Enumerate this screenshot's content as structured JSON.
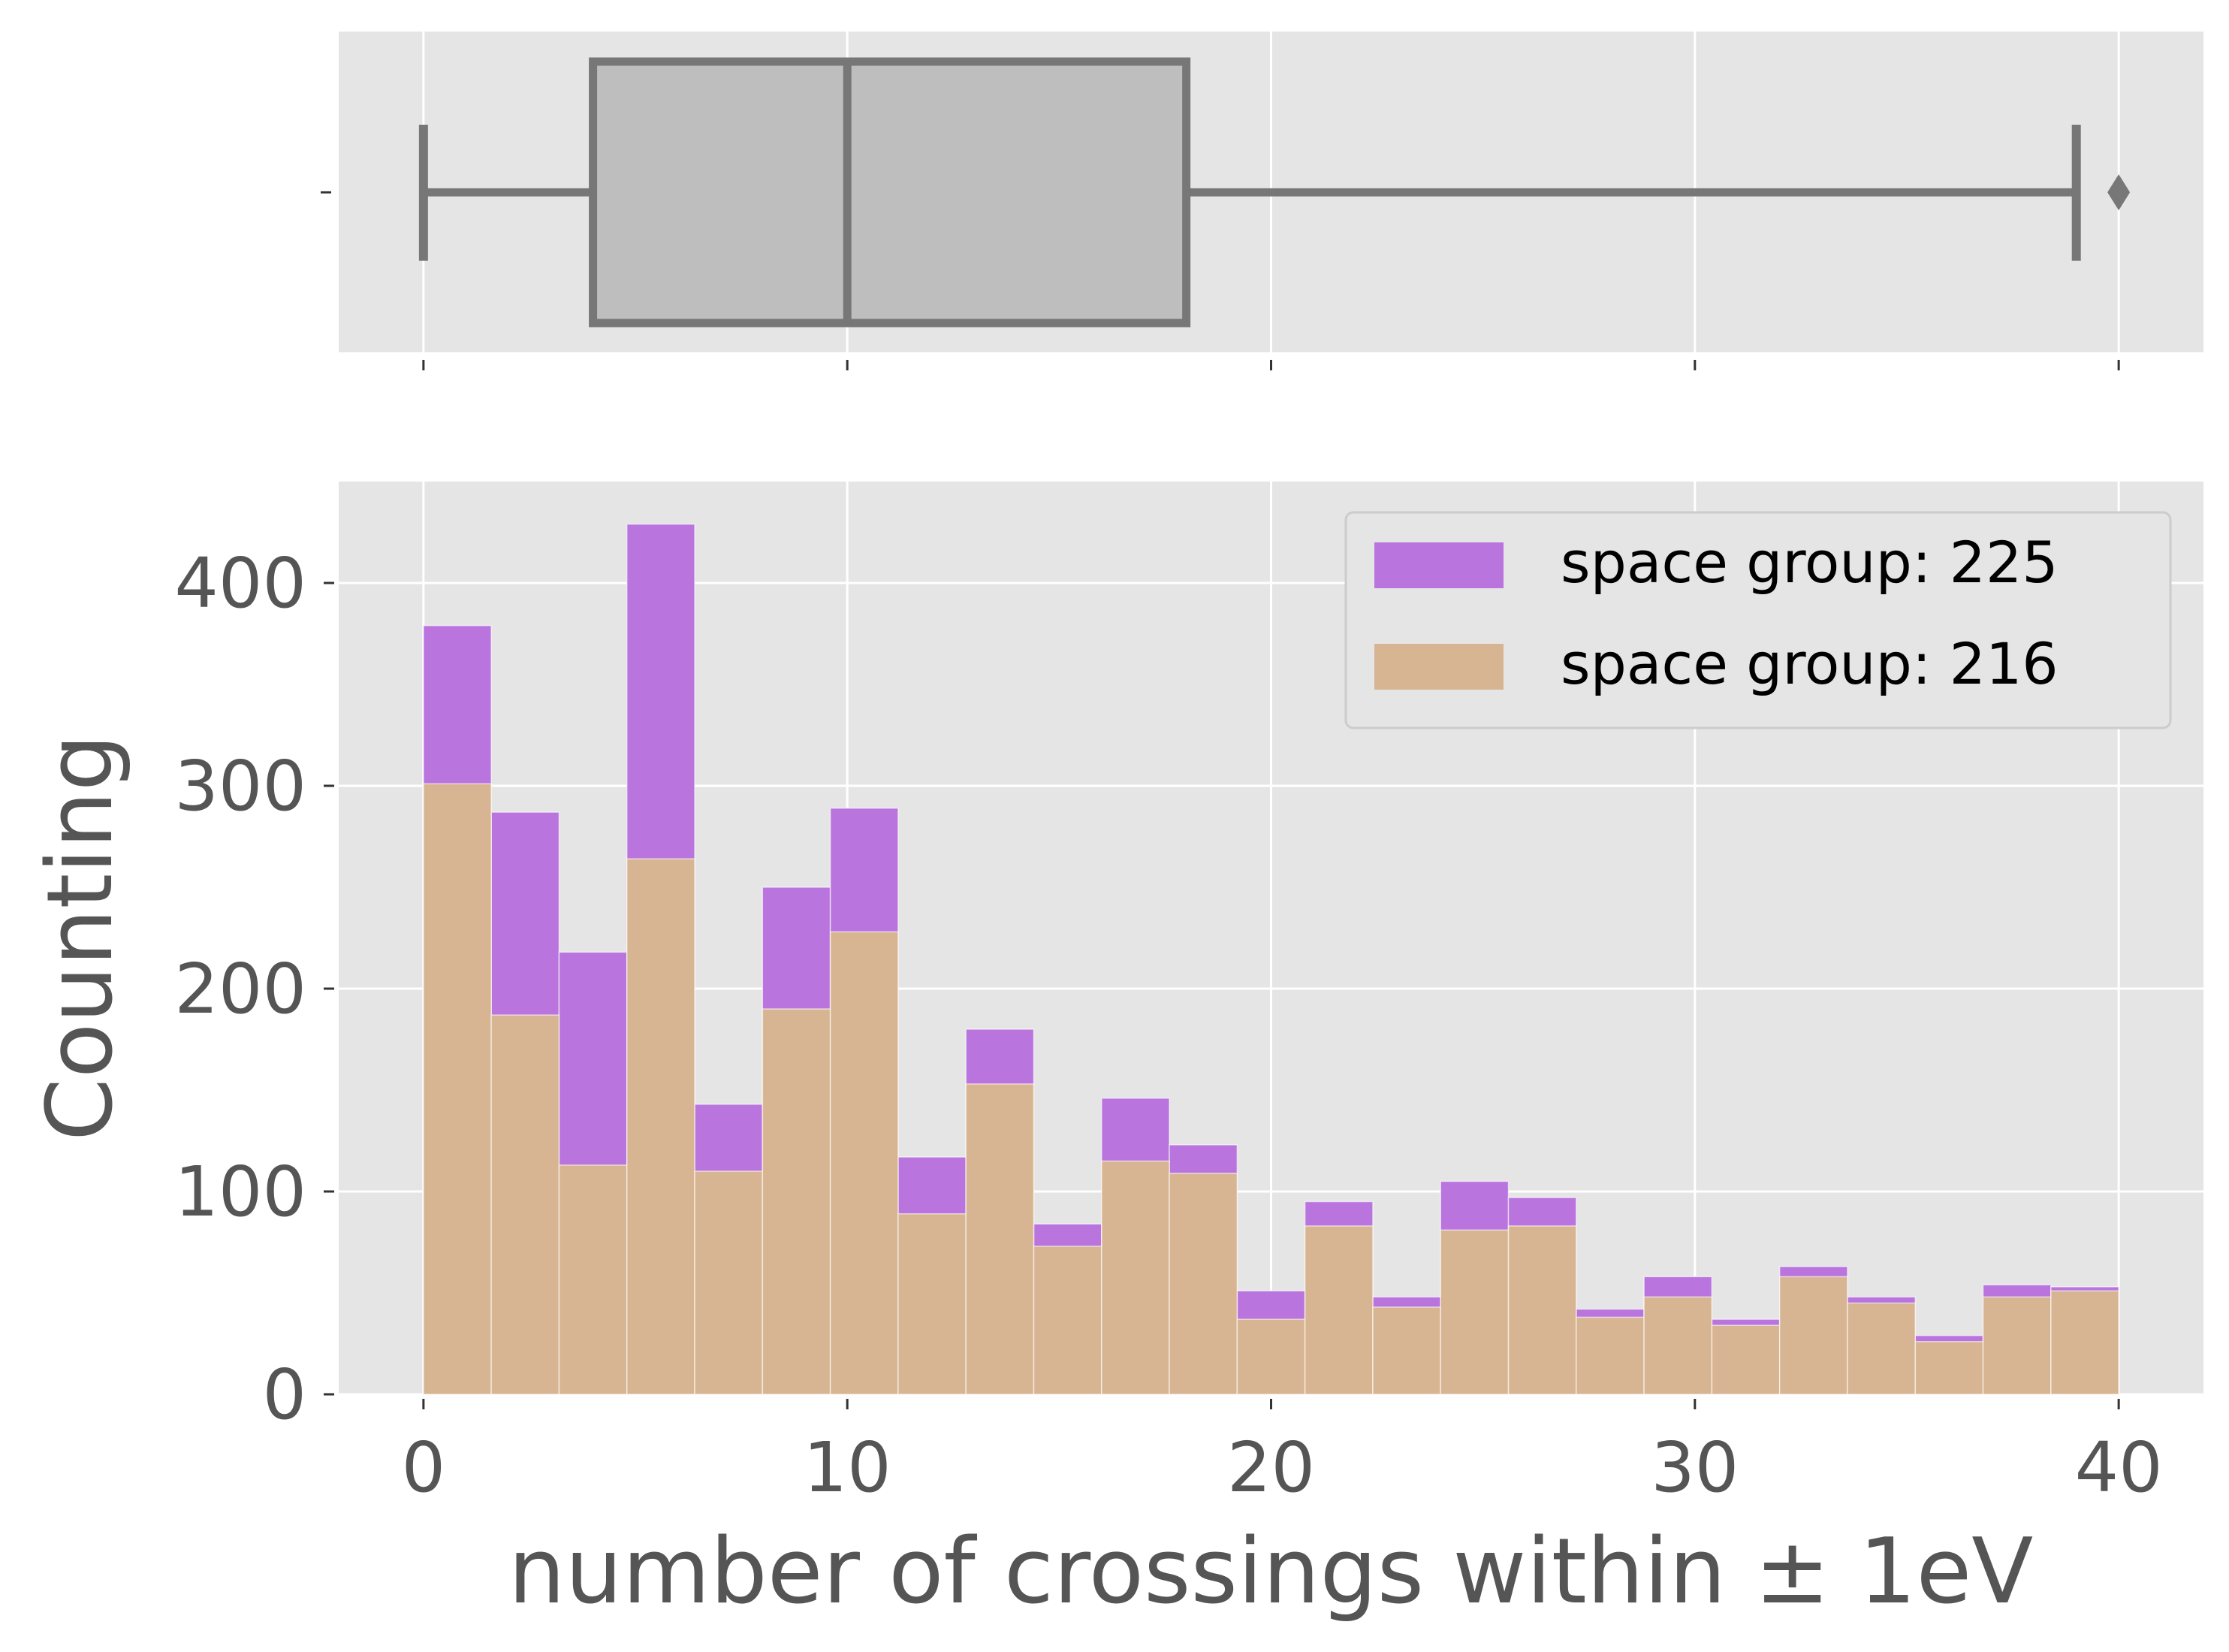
{
  "chart_data": {
    "type": "bar",
    "subtype": "stacked-step-histogram-with-boxplot",
    "xlabel": "number of crossings within ± 1eV",
    "ylabel": "Counting",
    "xlim": [
      -2,
      42
    ],
    "ylim": [
      0,
      450
    ],
    "x_ticks": [
      0,
      10,
      20,
      30,
      40
    ],
    "x_tick_labels": [
      "0",
      "10",
      "20",
      "30",
      "40"
    ],
    "y_ticks": [
      0,
      100,
      200,
      300,
      400
    ],
    "y_tick_labels": [
      "0",
      "100",
      "200",
      "300",
      "400"
    ],
    "grid": true,
    "legend_position": "top-right",
    "bin_edges": [
      0,
      1.6,
      3.2,
      4.8,
      6.4,
      8.0,
      9.6,
      11.2,
      12.8,
      14.4,
      16.0,
      17.6,
      19.2,
      20.8,
      22.4,
      24.0,
      25.6,
      27.2,
      28.8,
      30.4,
      32.0,
      33.6,
      35.2,
      36.8,
      38.4,
      40.0
    ],
    "series": [
      {
        "name": "space group: 225",
        "color": "#b974de",
        "stack_top_values": [
          379,
          287,
          218,
          429,
          143,
          250,
          289,
          117,
          180,
          84,
          146,
          123,
          51,
          95,
          48,
          105,
          97,
          42,
          58,
          37,
          63,
          48,
          29,
          54,
          53
        ]
      },
      {
        "name": "space group: 216",
        "color": "#d8b592",
        "values": [
          301,
          187,
          113,
          264,
          110,
          190,
          228,
          89,
          153,
          73,
          115,
          109,
          37,
          83,
          43,
          81,
          83,
          38,
          48,
          34,
          58,
          45,
          26,
          48,
          51
        ]
      }
    ],
    "boxplot": {
      "whisker_low": 0,
      "q1": 4,
      "median": 10,
      "q3": 18,
      "whisker_high": 39,
      "outliers": [
        40
      ],
      "box_color": "#bebebe",
      "line_color": "#777777"
    },
    "colors": {
      "panel_background": "#e5e5e5",
      "grid": "#ffffff",
      "text": "#555555"
    }
  }
}
